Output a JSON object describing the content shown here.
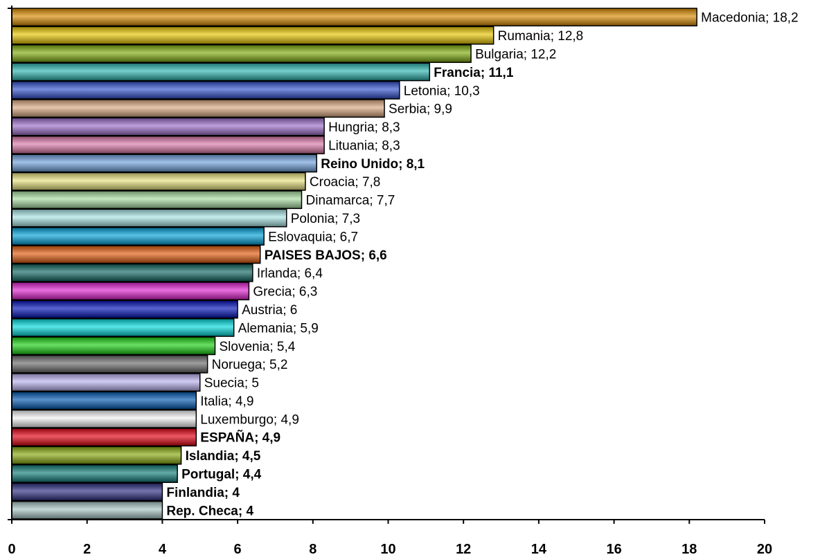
{
  "chart_data": {
    "type": "bar",
    "orientation": "horizontal",
    "title": "",
    "xlabel": "",
    "ylabel": "",
    "xlim": [
      0,
      20
    ],
    "x_ticks": [
      "0",
      "2",
      "4",
      "6",
      "8",
      "10",
      "12",
      "14",
      "16",
      "18",
      "20"
    ],
    "grid": false,
    "legend": "none",
    "bars": [
      {
        "label": "Macedonia; 18,2",
        "value": 18.2,
        "color": "#D98A00",
        "bold": false
      },
      {
        "label": "Rumania; 12,8",
        "value": 12.8,
        "color": "#E8C400",
        "bold": false
      },
      {
        "label": "Bulgaria; 12,2",
        "value": 12.2,
        "color": "#7EAA0C",
        "bold": false
      },
      {
        "label": "Francia; 11,1",
        "value": 11.1,
        "color": "#2AB3AE",
        "bold": true
      },
      {
        "label": "Letonia; 10,3",
        "value": 10.3,
        "color": "#2F4FCC",
        "bold": false
      },
      {
        "label": "Serbia; 9,9",
        "value": 9.9,
        "color": "#D9A880",
        "bold": false
      },
      {
        "label": "Hungria; 8,3",
        "value": 8.3,
        "color": "#9A6CC8",
        "bold": false
      },
      {
        "label": "Lituania; 8,3",
        "value": 8.3,
        "color": "#DA78A8",
        "bold": false
      },
      {
        "label": "Reino Unido; 8,1",
        "value": 8.1,
        "color": "#6FA0DC",
        "bold": true
      },
      {
        "label": "Croacia; 7,8",
        "value": 7.8,
        "color": "#E6E07C",
        "bold": false
      },
      {
        "label": "Dinamarca; 7,7",
        "value": 7.7,
        "color": "#A8DCA0",
        "bold": false
      },
      {
        "label": "Polonia; 7,3",
        "value": 7.3,
        "color": "#A8E4E4",
        "bold": false
      },
      {
        "label": "Eslovaquia; 6,7",
        "value": 6.7,
        "color": "#00A0D8",
        "bold": false
      },
      {
        "label": "PAISES BAJOS; 6,6",
        "value": 6.6,
        "color": "#E25A0C",
        "bold": true
      },
      {
        "label": "Irlanda; 6,4",
        "value": 6.4,
        "color": "#0F6560",
        "bold": false
      },
      {
        "label": "Grecia; 6,3",
        "value": 6.3,
        "color": "#E020D0",
        "bold": false
      },
      {
        "label": "Austria; 6",
        "value": 6,
        "color": "#0010B8",
        "bold": false
      },
      {
        "label": "Alemania; 5,9",
        "value": 5.9,
        "color": "#00D8DC",
        "bold": false
      },
      {
        "label": "Slovenia; 5,4",
        "value": 5.4,
        "color": "#18D010",
        "bold": false
      },
      {
        "label": "Noruega; 5,2",
        "value": 5.2,
        "color": "#6A6A6A",
        "bold": false
      },
      {
        "label": "Suecia; 5",
        "value": 5,
        "color": "#B8B0EC",
        "bold": false
      },
      {
        "label": "Italia; 4,9",
        "value": 4.9,
        "color": "#0058B0",
        "bold": false
      },
      {
        "label": "Luxemburgo; 4,9",
        "value": 4.9,
        "color": "#F2F2F2",
        "bold": false
      },
      {
        "label": "ESPAÑA; 4,9",
        "value": 4.9,
        "color": "#E40010",
        "bold": true
      },
      {
        "label": "Islandia; 4,5",
        "value": 4.5,
        "color": "#86A80C",
        "bold": true
      },
      {
        "label": "Portugal; 4,4",
        "value": 4.4,
        "color": "#0F7C78",
        "bold": true
      },
      {
        "label": "Finlandia; 4",
        "value": 4,
        "color": "#2A2A80",
        "bold": true
      },
      {
        "label": "Rep. Checa; 4",
        "value": 4,
        "color": "#A8C4C4",
        "bold": true
      }
    ]
  }
}
